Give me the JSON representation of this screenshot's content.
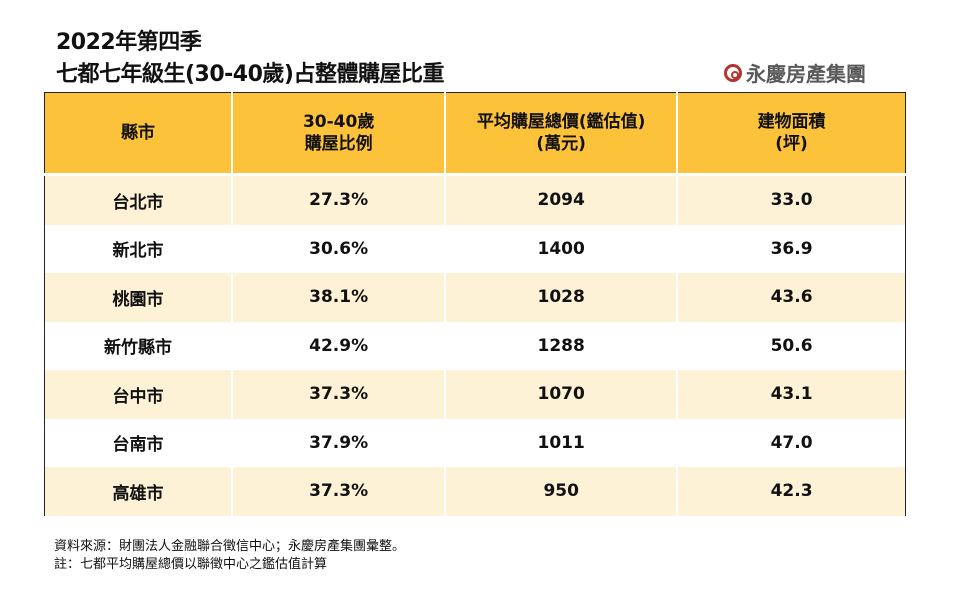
{
  "title_line1": "2022年第四季",
  "title_line2": "七都七年級生(30-40歲)占整體購屋比重",
  "logo_text": "永慶房產集團",
  "colors": {
    "header": "#fcc23a",
    "row_alt": "#fdf1d6",
    "logo": "#b8322f"
  },
  "chart_data": {
    "type": "table",
    "columns": [
      {
        "line1": "縣市",
        "line2": ""
      },
      {
        "line1": "30-40歲",
        "line2": "購屋比例"
      },
      {
        "line1": "平均購屋總價(鑑估值)",
        "line2": "(萬元)"
      },
      {
        "line1": "建物面積",
        "line2": "(坪)"
      }
    ],
    "rows": [
      [
        "台北市",
        "27.3%",
        "2094",
        "33.0"
      ],
      [
        "新北市",
        "30.6%",
        "1400",
        "36.9"
      ],
      [
        "桃園市",
        "38.1%",
        "1028",
        "43.6"
      ],
      [
        "新竹縣市",
        "42.9%",
        "1288",
        "50.6"
      ],
      [
        "台中市",
        "37.3%",
        "1070",
        "43.1"
      ],
      [
        "台南市",
        "37.9%",
        "1011",
        "47.0"
      ],
      [
        "高雄市",
        "37.3%",
        "950",
        "42.3"
      ]
    ]
  },
  "source_note": "資料來源：財團法人金融聯合徵信中心；永慶房產集團彙整。",
  "footnote": "註：七都平均購屋總價以聯徵中心之鑑估值計算"
}
